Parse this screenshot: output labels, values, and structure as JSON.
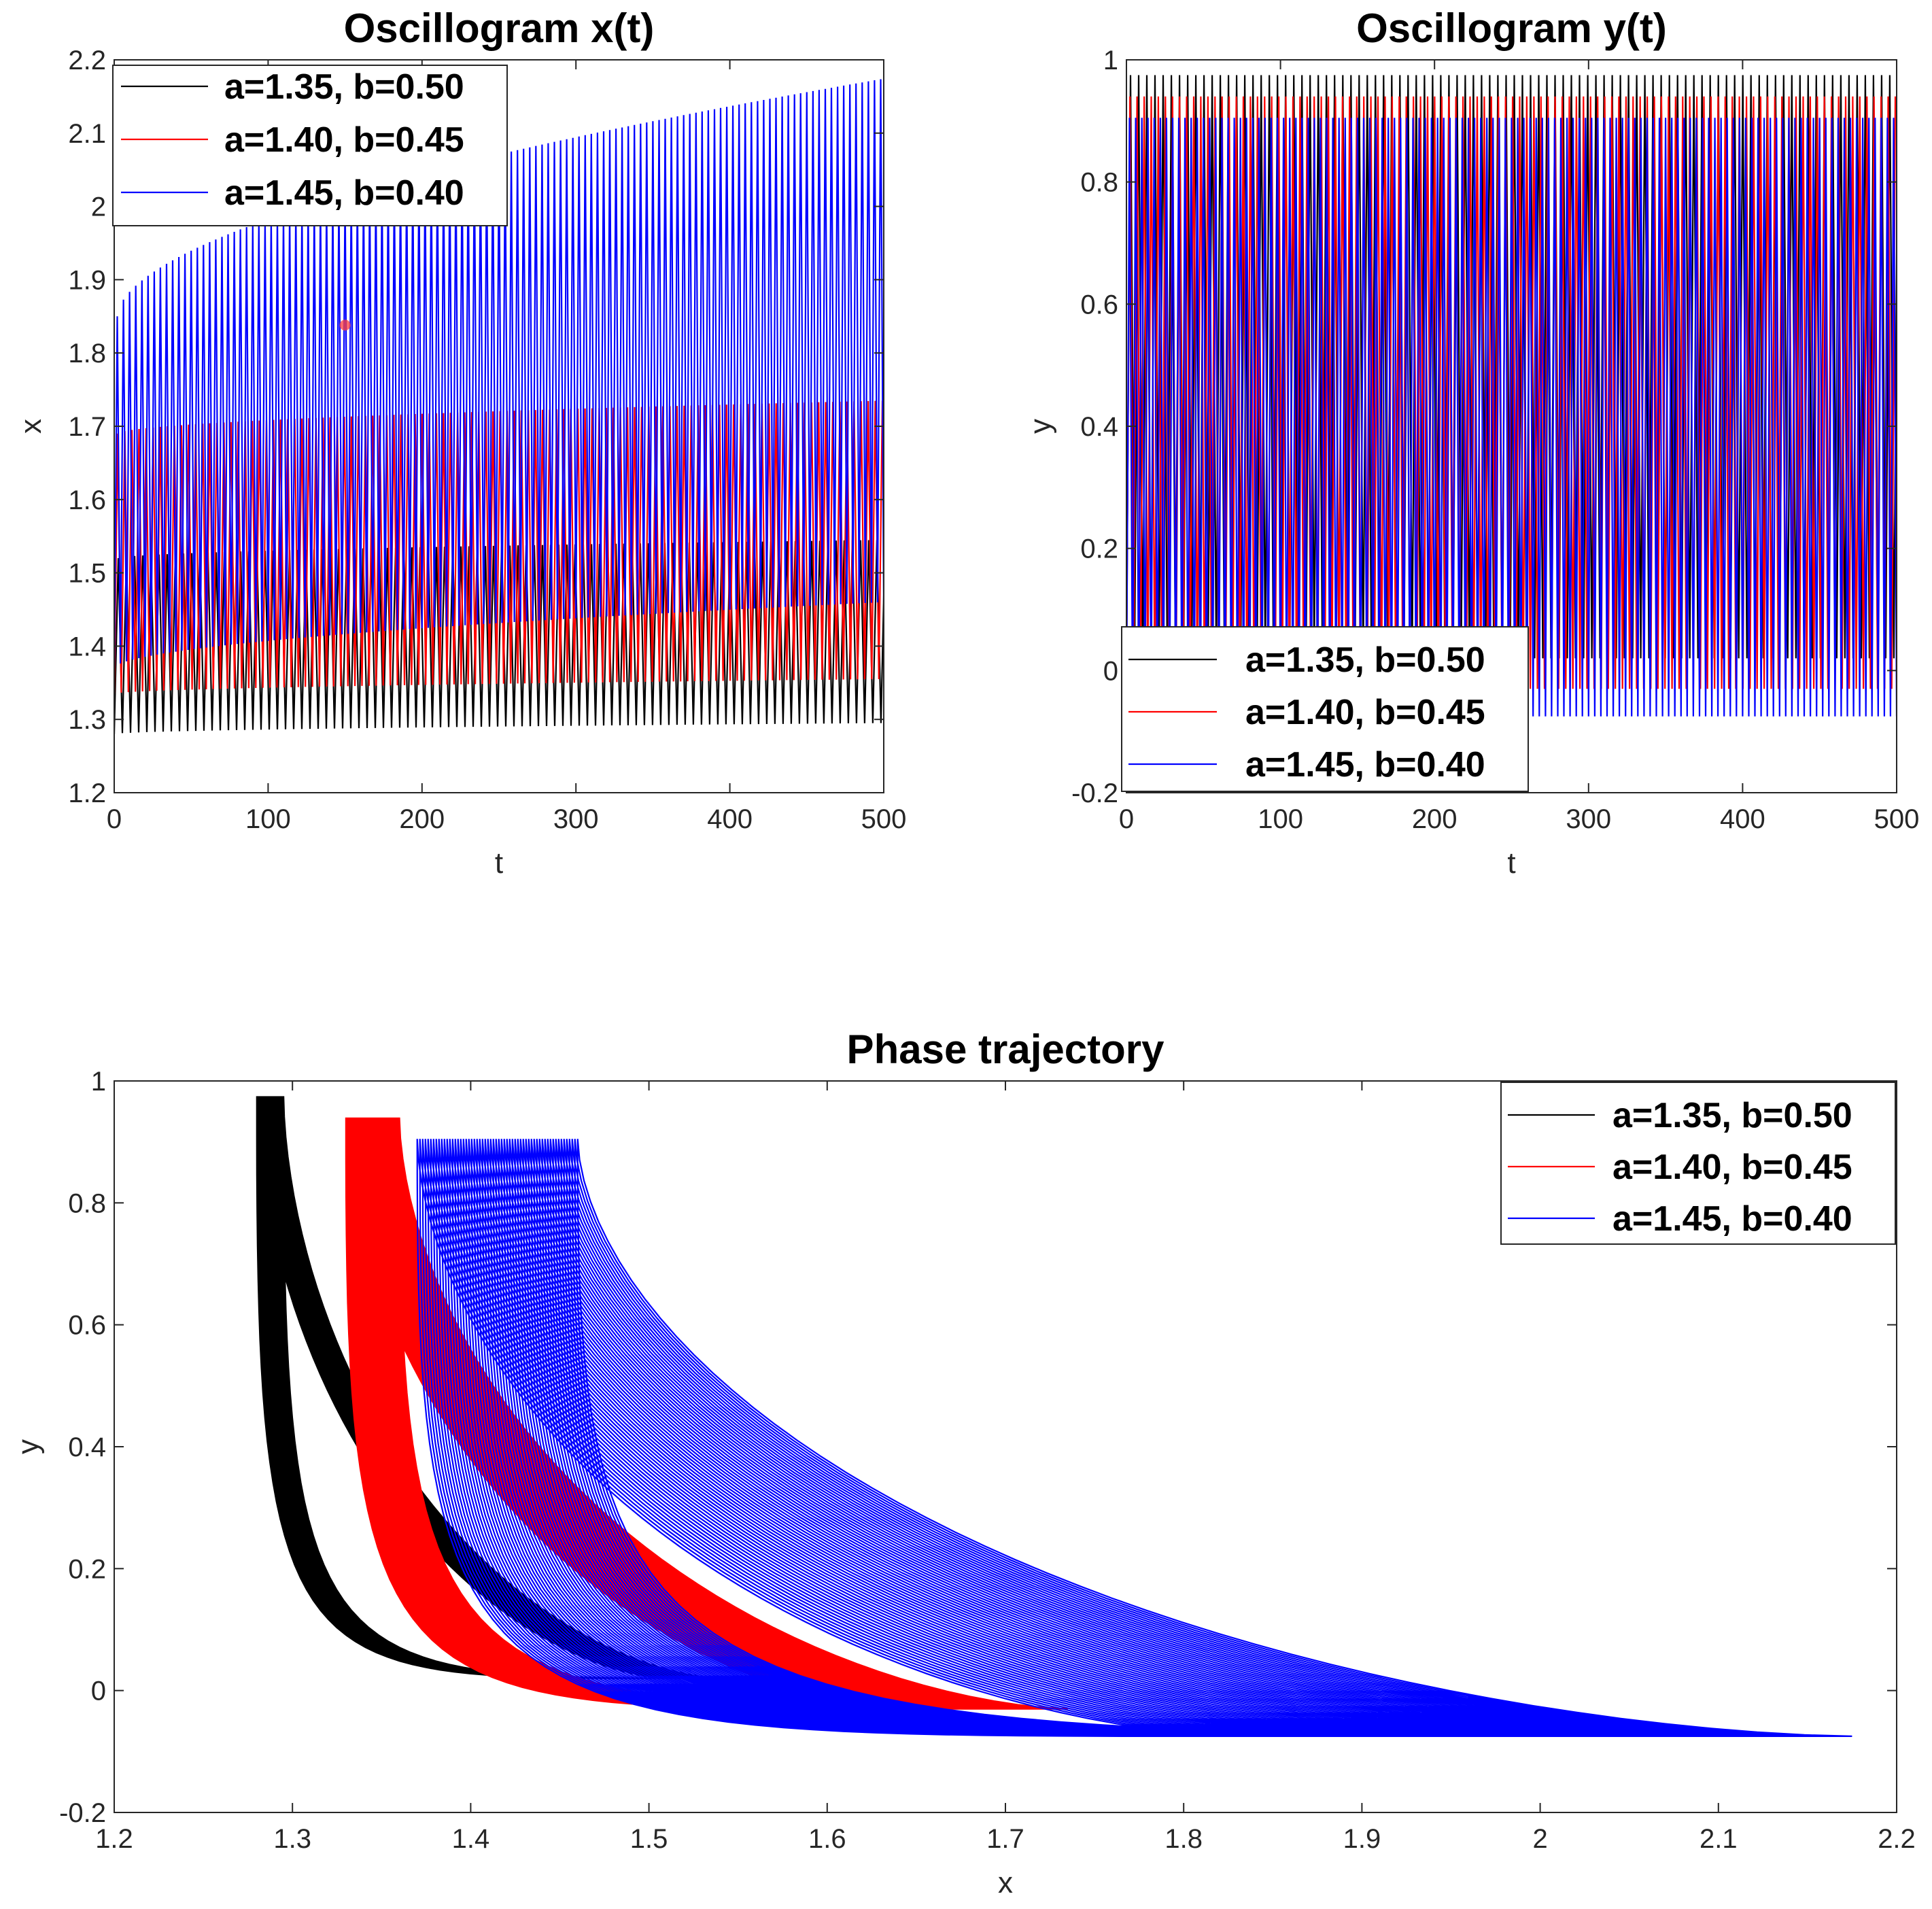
{
  "chart_data": [
    {
      "id": "x-osc",
      "type": "line",
      "title": "Oscillogram x(t)",
      "xlabel": "t",
      "ylabel": "x",
      "xlim": [
        0,
        500
      ],
      "ylim": [
        1.2,
        2.2
      ],
      "xticks": [
        "0",
        "100",
        "200",
        "300",
        "400",
        "500"
      ],
      "yticks": [
        "1.2",
        "1.3",
        "1.4",
        "1.5",
        "1.6",
        "1.7",
        "1.8",
        "1.9",
        "2",
        "2.1",
        "2.2"
      ],
      "grid": false,
      "legend_position": "top-left",
      "series": [
        {
          "name": "a=1.35, b=0.50",
          "color": "#000000",
          "period": 5.3,
          "min": [
            1.28,
            1.295
          ],
          "max": [
            1.52,
            1.545
          ]
        },
        {
          "name": "a=1.40, b=0.45",
          "color": "#ff0000",
          "period": 4.6,
          "min": [
            1.335,
            1.355
          ],
          "max": [
            1.69,
            1.735
          ]
        },
        {
          "name": "a=1.45, b=0.40",
          "color": "#0000ff",
          "period": 4.0,
          "min": [
            1.37,
            1.46
          ],
          "max": [
            1.85,
            2.175
          ]
        }
      ]
    },
    {
      "id": "y-osc",
      "type": "line",
      "title": "Oscillogram y(t)",
      "xlabel": "t",
      "ylabel": "y",
      "xlim": [
        0,
        500
      ],
      "ylim": [
        -0.2,
        1.0
      ],
      "xticks": [
        "0",
        "100",
        "200",
        "300",
        "400",
        "500"
      ],
      "yticks": [
        "-0.2",
        "0",
        "0.2",
        "0.4",
        "0.6",
        "0.8",
        "1"
      ],
      "grid": false,
      "legend_position": "bottom-left",
      "series": [
        {
          "name": "a=1.35, b=0.50",
          "color": "#000000",
          "period": 5.3,
          "min": [
            0.02,
            0.02
          ],
          "max": [
            0.975,
            0.975
          ]
        },
        {
          "name": "a=1.40, b=0.45",
          "color": "#ff0000",
          "period": 4.6,
          "min": [
            -0.03,
            -0.03
          ],
          "max": [
            0.94,
            0.94
          ]
        },
        {
          "name": "a=1.45, b=0.40",
          "color": "#0000ff",
          "period": 4.0,
          "min": [
            -0.075,
            -0.075
          ],
          "max": [
            0.905,
            0.905
          ]
        }
      ]
    },
    {
      "id": "phase",
      "type": "line",
      "title": "Phase trajectory",
      "xlabel": "x",
      "ylabel": "y",
      "xlim": [
        1.2,
        2.2
      ],
      "ylim": [
        -0.2,
        1.0
      ],
      "xticks": [
        "1.2",
        "1.3",
        "1.4",
        "1.5",
        "1.6",
        "1.7",
        "1.8",
        "1.9",
        "2",
        "2.1",
        "2.2"
      ],
      "yticks": [
        "-0.2",
        "0",
        "0.2",
        "0.4",
        "0.6",
        "0.8",
        "1"
      ],
      "grid": false,
      "legend_position": "top-right",
      "series": [
        {
          "name": "a=1.35, b=0.50",
          "color": "#000000",
          "x_min": [
            1.28,
            1.295
          ],
          "x_max": [
            1.51,
            1.54
          ],
          "y_min": 0.02,
          "y_max": 0.975
        },
        {
          "name": "a=1.40, b=0.45",
          "color": "#ff0000",
          "x_min": [
            1.33,
            1.36
          ],
          "x_max": [
            1.64,
            1.735
          ],
          "y_min": -0.03,
          "y_max": 0.94
        },
        {
          "name": "a=1.45, b=0.40",
          "color": "#0000ff",
          "x_min": [
            1.37,
            1.46
          ],
          "x_max": [
            1.83,
            2.175
          ],
          "y_min": -0.075,
          "y_max": 0.905
        }
      ]
    }
  ]
}
